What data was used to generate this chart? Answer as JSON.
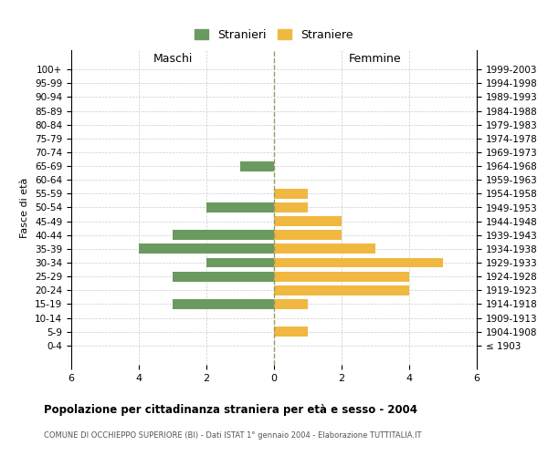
{
  "age_groups": [
    "100+",
    "95-99",
    "90-94",
    "85-89",
    "80-84",
    "75-79",
    "70-74",
    "65-69",
    "60-64",
    "55-59",
    "50-54",
    "45-49",
    "40-44",
    "35-39",
    "30-34",
    "25-29",
    "20-24",
    "15-19",
    "10-14",
    "5-9",
    "0-4"
  ],
  "birth_years": [
    "≤ 1903",
    "1904-1908",
    "1909-1913",
    "1914-1918",
    "1919-1923",
    "1924-1928",
    "1929-1933",
    "1934-1938",
    "1939-1943",
    "1944-1948",
    "1949-1953",
    "1954-1958",
    "1959-1963",
    "1964-1968",
    "1969-1973",
    "1974-1978",
    "1979-1983",
    "1984-1988",
    "1989-1993",
    "1994-1998",
    "1999-2003"
  ],
  "males": [
    0,
    0,
    0,
    0,
    0,
    0,
    0,
    1,
    0,
    0,
    2,
    0,
    3,
    4,
    2,
    3,
    0,
    3,
    0,
    0,
    0
  ],
  "females": [
    0,
    0,
    0,
    0,
    0,
    0,
    0,
    0,
    0,
    1,
    1,
    2,
    2,
    3,
    5,
    4,
    4,
    1,
    0,
    1,
    0
  ],
  "male_color": "#6a9a5f",
  "female_color": "#f0b840",
  "title": "Popolazione per cittadinanza straniera per età e sesso - 2004",
  "subtitle": "COMUNE DI OCCHIEPPO SUPERIORE (BI) - Dati ISTAT 1° gennaio 2004 - Elaborazione TUTTITALIA.IT",
  "xlabel_left": "Maschi",
  "xlabel_right": "Femmine",
  "ylabel_left": "Fasce di età",
  "legend_male": "Stranieri",
  "legend_female": "Straniere",
  "xlim": 6,
  "background_color": "#ffffff",
  "grid_color": "#cccccc"
}
